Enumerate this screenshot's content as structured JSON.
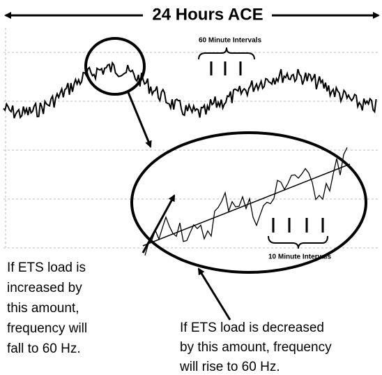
{
  "title": "24 Hours ACE",
  "labels": {
    "hourly": "60 Minute Intervals",
    "ten_minute": "10 Minute Intervals"
  },
  "annotations": [
    {
      "lines": [
        "If ETS load is",
        "increased by",
        "this amount,",
        "frequency will",
        "fall to 60 Hz."
      ]
    },
    {
      "lines": [
        "If ETS load is decreased",
        "by this amount, frequency",
        "will rise to 60 Hz."
      ]
    }
  ]
}
